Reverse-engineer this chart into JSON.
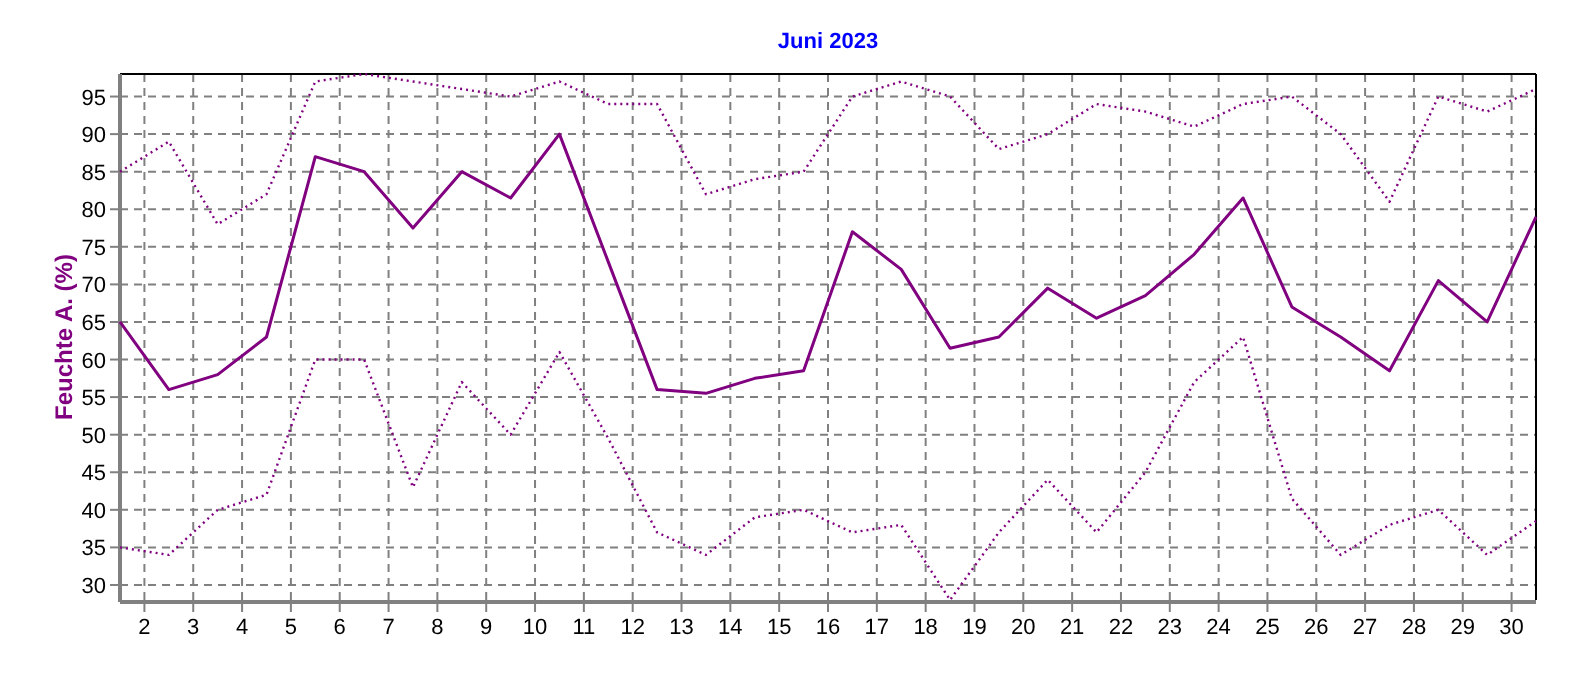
{
  "chart_data": {
    "type": "line",
    "title": "Juni 2023",
    "ylabel": "Feuchte A. (%)",
    "x": [
      1.5,
      2.5,
      3.5,
      4.5,
      5.5,
      6.5,
      7.5,
      8.5,
      9.5,
      10.5,
      11.5,
      12.5,
      13.5,
      14.5,
      15.5,
      16.5,
      17.5,
      18.5,
      19.5,
      20.5,
      21.5,
      22.5,
      23.5,
      24.5,
      25.5,
      26.5,
      27.5,
      28.5,
      29.5,
      30.5
    ],
    "xlim": [
      1.5,
      30.5
    ],
    "xticks": [
      2,
      3,
      4,
      5,
      6,
      7,
      8,
      9,
      10,
      11,
      12,
      13,
      14,
      15,
      16,
      17,
      18,
      19,
      20,
      21,
      22,
      23,
      24,
      25,
      26,
      27,
      28,
      29,
      30
    ],
    "ylim": [
      28,
      98
    ],
    "yticks": [
      30,
      35,
      40,
      45,
      50,
      55,
      60,
      65,
      70,
      75,
      80,
      85,
      90,
      95
    ],
    "grid": true,
    "marker": "none",
    "series": [
      {
        "color": "#800080",
        "line_style": "solid",
        "values": [
          65,
          56,
          58,
          63,
          87,
          85,
          77.5,
          85,
          81.5,
          90,
          73,
          56,
          55.5,
          57.5,
          58.5,
          77,
          72,
          61.5,
          63,
          69.5,
          65.5,
          68.5,
          74,
          81.5,
          67,
          63,
          58.5,
          70.5,
          65,
          79
        ]
      },
      {
        "color": "#800080",
        "line_style": "dotted",
        "values": [
          85,
          89,
          78,
          82,
          97,
          98,
          97,
          96,
          95,
          97,
          94,
          94,
          82,
          84,
          85,
          95,
          97,
          95,
          88,
          90,
          94,
          93,
          91,
          94,
          95,
          90,
          81,
          95,
          93,
          96
        ]
      },
      {
        "color": "#800080",
        "line_style": "dotted",
        "values": [
          35,
          34,
          40,
          42,
          60,
          60,
          43,
          57,
          50,
          61,
          49.5,
          37,
          34,
          39,
          40,
          37,
          38,
          28,
          37,
          44,
          37,
          45,
          57,
          63,
          41.5,
          34,
          38,
          40,
          34,
          38.5
        ]
      }
    ]
  }
}
